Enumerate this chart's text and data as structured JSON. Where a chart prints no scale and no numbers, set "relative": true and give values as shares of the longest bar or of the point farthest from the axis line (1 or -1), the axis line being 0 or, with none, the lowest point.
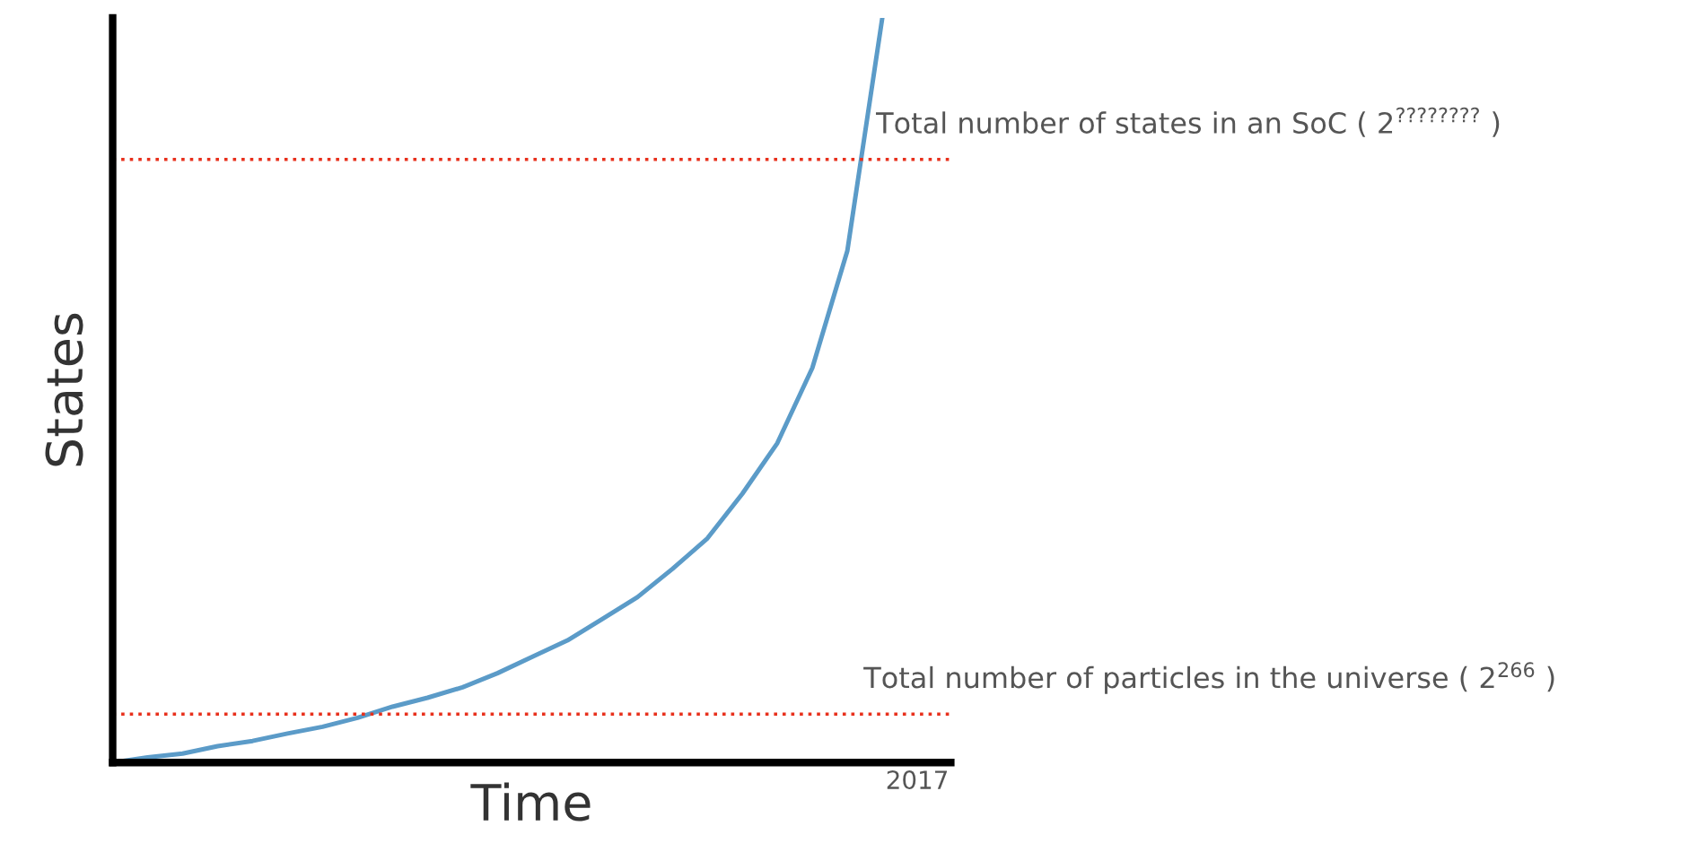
{
  "chart_data": {
    "type": "line",
    "relative": true,
    "xlabel": "Time",
    "ylabel": "States",
    "categories": [
      null,
      null,
      null,
      null,
      null,
      null,
      null,
      null,
      null,
      null,
      null,
      null,
      null,
      null,
      null,
      null,
      null,
      null,
      null,
      null,
      null,
      null,
      null
    ],
    "series": [
      {
        "color": "#5b9bc8",
        "values": [
          0,
          0.007,
          0.012,
          0.022,
          0.029,
          0.039,
          0.048,
          0.06,
          0.075,
          0.087,
          0.101,
          0.12,
          0.142,
          0.164,
          0.193,
          0.222,
          0.26,
          0.301,
          0.361,
          0.429,
          0.53,
          0.687,
          1
        ]
      }
    ],
    "ref_lines": [
      {
        "axis": "y",
        "value": 0.81,
        "label": "Total number of states in an SoC ( 2$^{????????}$ )",
        "color": "#e8301c",
        "line_style": "dotted"
      },
      {
        "axis": "y",
        "value": 0.065,
        "label": "Total number of particles in the universe ( 2$^{266}$ )",
        "color": "#e8301c",
        "line_style": "dotted"
      }
    ],
    "annotations": [
      "2017"
    ],
    "legend": false,
    "marker": "none",
    "line_style": "solid"
  }
}
